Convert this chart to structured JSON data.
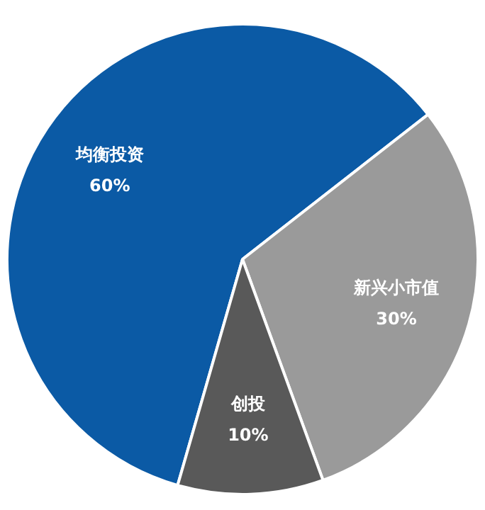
{
  "chart_data": {
    "type": "pie",
    "categories": [
      "均衡投资",
      "新兴小市值",
      "创投"
    ],
    "values": [
      60,
      30,
      10
    ],
    "colors": [
      "#0b5aa5",
      "#9a9a9a",
      "#595959"
    ],
    "value_labels": [
      "60%",
      "30%",
      "10%"
    ],
    "legend": false
  }
}
